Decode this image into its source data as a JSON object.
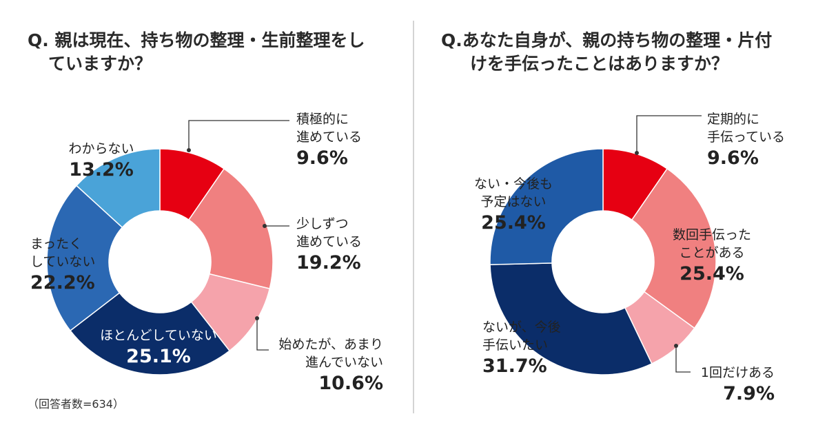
{
  "note": "（回答者数=634）",
  "chart_data": [
    {
      "type": "pie",
      "donut": true,
      "title_lines": [
        "Q. 親は現在、持ち物の整理・生前整理をし",
        "ていますか？"
      ],
      "slices": [
        {
          "label_lines": [
            "積極的に",
            "進めている"
          ],
          "value": 9.6,
          "value_text": "9.6%",
          "color": "#e60012"
        },
        {
          "label_lines": [
            "少しずつ",
            "進めている"
          ],
          "value": 19.2,
          "value_text": "19.2%",
          "color": "#f08080"
        },
        {
          "label_lines": [
            "始めたが、あまり",
            "進んでいない"
          ],
          "value": 10.6,
          "value_text": "10.6%",
          "color": "#f5a3ab"
        },
        {
          "label_lines": [
            "ほとんどしていない"
          ],
          "value": 25.1,
          "value_text": "25.1%",
          "color": "#0b2d69"
        },
        {
          "label_lines": [
            "まったく",
            "していない"
          ],
          "value": 22.2,
          "value_text": "22.2%",
          "color": "#2b68b3"
        },
        {
          "label_lines": [
            "わからない"
          ],
          "value": 13.2,
          "value_text": "13.2%",
          "color": "#4aa3d8"
        }
      ]
    },
    {
      "type": "pie",
      "donut": true,
      "title_lines": [
        "Q.あなた自身が、親の持ち物の整理・片付",
        "けを手伝ったことはありますか？"
      ],
      "slices": [
        {
          "label_lines": [
            "定期的に",
            "手伝っている"
          ],
          "value": 9.6,
          "value_text": "9.6%",
          "color": "#e60012"
        },
        {
          "label_lines": [
            "数回手伝った",
            "ことがある"
          ],
          "value": 25.4,
          "value_text": "25.4%",
          "color": "#f08080"
        },
        {
          "label_lines": [
            "1回だけある"
          ],
          "value": 7.9,
          "value_text": "7.9%",
          "color": "#f5a3ab"
        },
        {
          "label_lines": [
            "ないが、今後",
            "手伝いたい"
          ],
          "value": 31.7,
          "value_text": "31.7%",
          "color": "#0b2d69"
        },
        {
          "label_lines": [
            "ない・今後も",
            "予定はない"
          ],
          "value": 25.4,
          "value_text": "25.4%",
          "color": "#1f5aa6"
        }
      ]
    }
  ]
}
